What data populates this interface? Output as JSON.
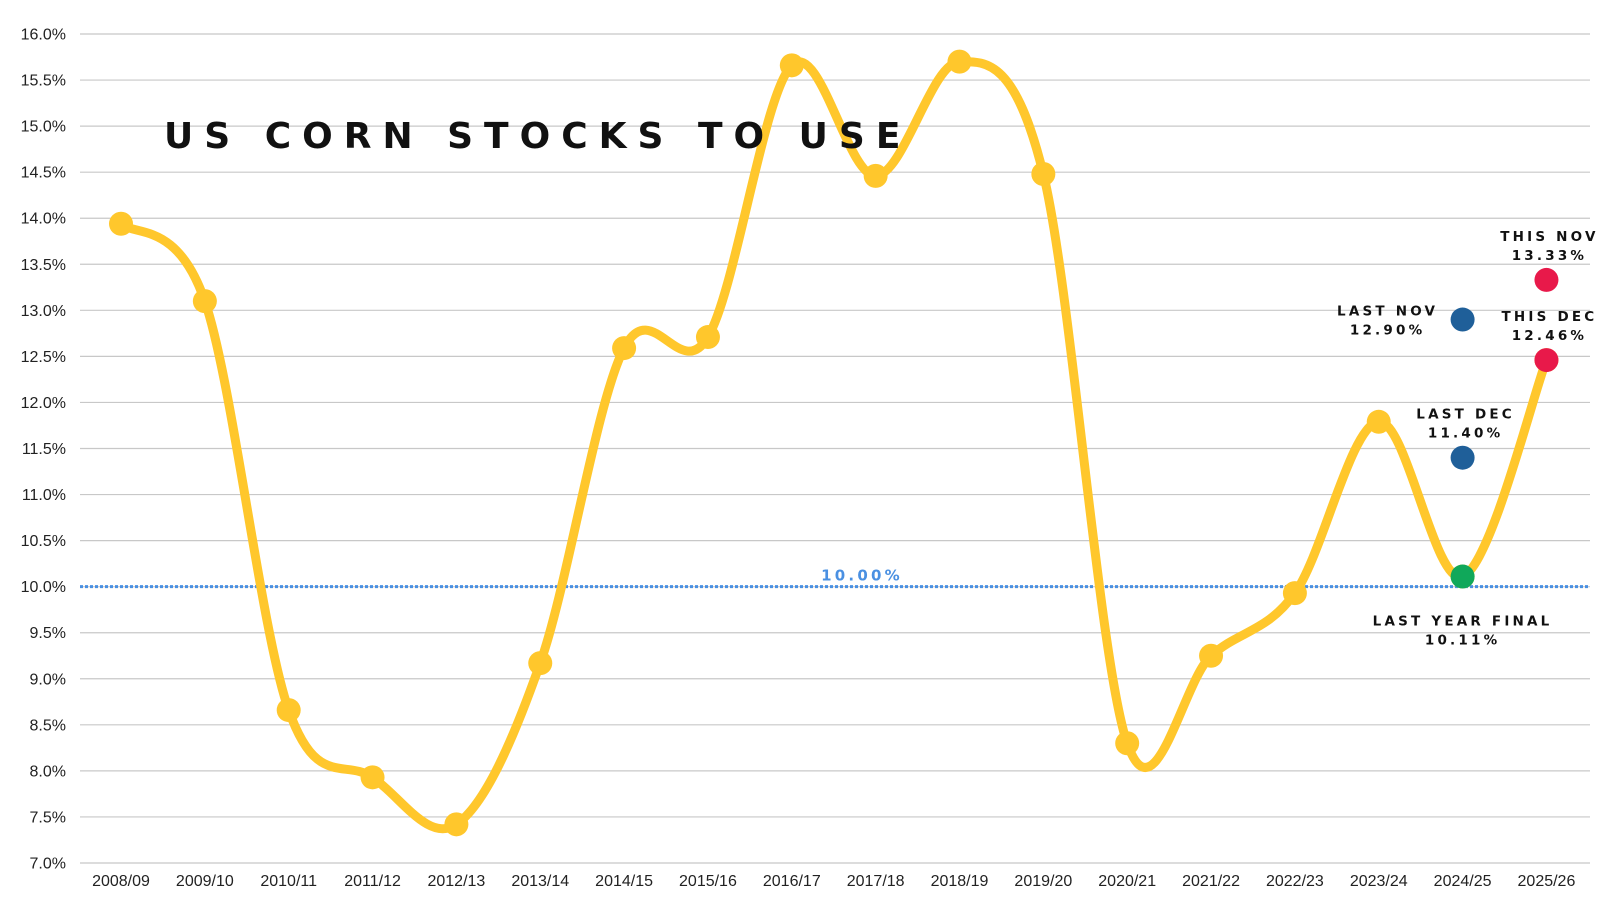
{
  "chart_data": {
    "type": "line",
    "title": "US CORN STOCKS TO USE",
    "xlabel": "",
    "ylabel": "",
    "categories": [
      "2008/09",
      "2009/10",
      "2010/11",
      "2011/12",
      "2012/13",
      "2013/14",
      "2014/15",
      "2015/16",
      "2016/17",
      "2017/18",
      "2018/19",
      "2019/20",
      "2020/21",
      "2021/22",
      "2022/23",
      "2023/24",
      "2024/25",
      "2025/26"
    ],
    "ylim": [
      7.0,
      16.0
    ],
    "y_ticks": [
      7.0,
      7.5,
      8.0,
      8.5,
      9.0,
      9.5,
      10.0,
      10.5,
      11.0,
      11.5,
      12.0,
      12.5,
      13.0,
      13.5,
      14.0,
      14.5,
      15.0,
      15.5,
      16.0
    ],
    "y_tick_labels": [
      "7.0%",
      "7.5%",
      "8.0%",
      "8.5%",
      "9.0%",
      "9.5%",
      "10.0%",
      "10.5%",
      "11.0%",
      "11.5%",
      "12.0%",
      "12.5%",
      "13.0%",
      "13.5%",
      "14.0%",
      "14.5%",
      "15.0%",
      "15.5%",
      "16.0%"
    ],
    "grid": true,
    "series": [
      {
        "values": [
          13.94,
          13.1,
          8.66,
          7.93,
          7.42,
          9.17,
          12.59,
          12.71,
          15.66,
          14.46,
          15.7,
          14.48,
          8.3,
          9.25,
          9.93,
          11.79,
          10.11,
          12.46
        ],
        "color": "#FFC72C"
      }
    ],
    "reference_line": {
      "value": 10.0,
      "label": "10.00%",
      "color": "#4A90E2",
      "style": "dotted"
    },
    "annotations": [
      {
        "category": "2024/25",
        "value": 10.11,
        "color": "#10A85A",
        "lines": [
          "LAST YEAR FINAL",
          "10.11%"
        ],
        "text_position": "below"
      },
      {
        "category": "2024/25",
        "value": 11.4,
        "color": "#1F5F99",
        "lines": [
          "LAST DEC",
          "11.40%"
        ],
        "text_position": "above"
      },
      {
        "category": "2024/25",
        "value": 12.9,
        "color": "#1F5F99",
        "lines": [
          "LAST NOV",
          "12.90%"
        ],
        "text_position": "left"
      },
      {
        "category": "2025/26",
        "value": 12.46,
        "color": "#E8194A",
        "lines": [
          "THIS DEC",
          "12.46%"
        ],
        "text_position": "above"
      },
      {
        "category": "2025/26",
        "value": 13.33,
        "color": "#E8194A",
        "lines": [
          "THIS NOV",
          "13.33%"
        ],
        "text_position": "above"
      }
    ],
    "colors": {
      "line": "#FFC72C",
      "grid": "#c8c8c8",
      "axis_text": "#222222",
      "title": "#111111"
    }
  }
}
